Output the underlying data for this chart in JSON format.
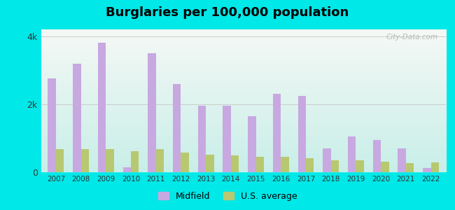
{
  "title": "Burglaries per 100,000 population",
  "years": [
    2007,
    2008,
    2009,
    2010,
    2011,
    2012,
    2013,
    2014,
    2015,
    2016,
    2017,
    2018,
    2019,
    2020,
    2021,
    2022
  ],
  "midfield": [
    2750,
    3200,
    3800,
    150,
    3500,
    2600,
    1950,
    1950,
    1650,
    2300,
    2250,
    700,
    1050,
    950,
    700,
    120
  ],
  "us_average": [
    680,
    680,
    680,
    620,
    680,
    580,
    510,
    490,
    460,
    450,
    420,
    340,
    340,
    310,
    270,
    280
  ],
  "midfield_color": "#c8a8e0",
  "us_avg_color": "#b8c870",
  "ylim": [
    0,
    4200
  ],
  "yticks": [
    0,
    2000,
    4000
  ],
  "ytick_labels": [
    "0",
    "2k",
    "4k"
  ],
  "background_color": "#00e8e8",
  "watermark": "City-Data.com",
  "legend_midfield": "Midfield",
  "legend_us": "U.S. average",
  "title_fontsize": 13,
  "bar_width": 0.32
}
